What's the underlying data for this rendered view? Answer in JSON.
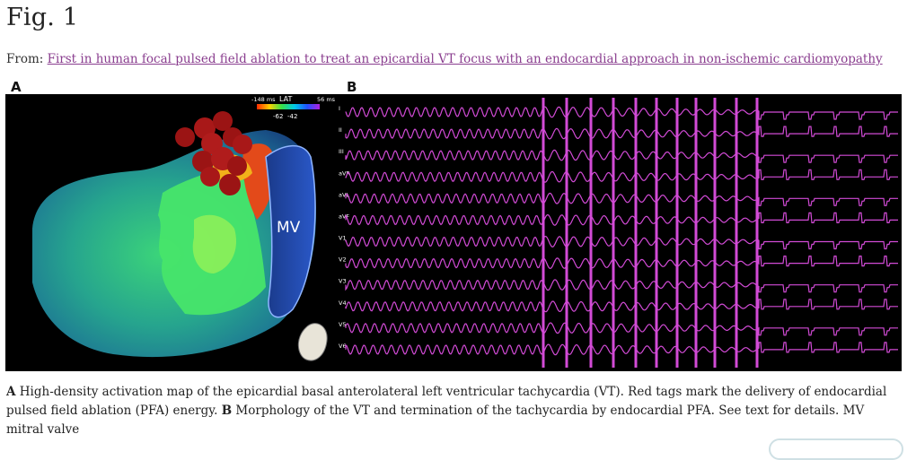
{
  "figure": {
    "title": "Fig. 1",
    "from_prefix": "From:",
    "source_link": "First in human focal pulsed field ablation to treat an epicardial VT focus with an endocardial approach in non-ischemic cardiomyopathy"
  },
  "panel_a": {
    "label": "A",
    "colorbar_min": "-148 ms",
    "colorbar_title": "LAT",
    "colorbar_max": "56 ms",
    "colorbar_tick_1": "-62",
    "colorbar_tick_2": "-42",
    "mv_label": "MV"
  },
  "panel_b": {
    "label": "B",
    "leads": [
      "I",
      "II",
      "III",
      "aVR",
      "aVL",
      "aVF",
      "V1",
      "V2",
      "V3",
      "V4",
      "V5",
      "V6"
    ],
    "trace_color": "#d24bd6"
  },
  "caption": {
    "a_label": "A",
    "a_text": " High-density activation map of the epicardial basal anterolateral left ventricular tachycardia (VT). Red tags mark the delivery of endocardial pulsed field ablation (PFA) energy. ",
    "b_label": "B",
    "b_text": " Morphology of the VT and termination of the tachycardia by endocardial PFA. See text for details. MV mitral valve"
  },
  "colors": {
    "link": "#8a3e8f",
    "ablation_tag": "#9b1414",
    "map_green": "#2fd86a",
    "map_teal": "#1f8f9a"
  }
}
